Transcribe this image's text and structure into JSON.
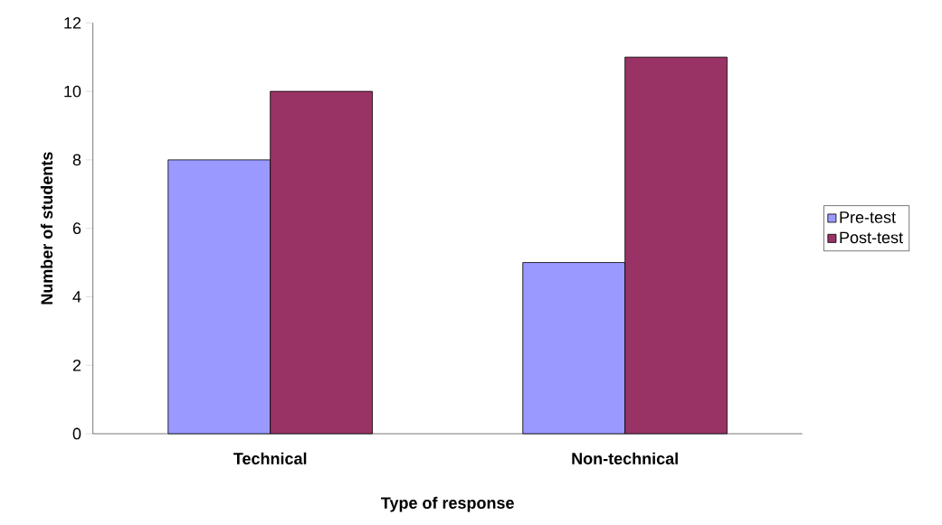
{
  "chart_data": {
    "type": "bar",
    "xlabel": "Type of response",
    "ylabel": "Number of students",
    "categories": [
      "Technical",
      "Non-technical"
    ],
    "series": [
      {
        "name": "Pre-test",
        "color": "#9999ff",
        "values": [
          8,
          5
        ]
      },
      {
        "name": "Post-test",
        "color": "#993366",
        "values": [
          10,
          11
        ]
      }
    ],
    "ylim": [
      0,
      12
    ],
    "yticks": [
      0,
      2,
      4,
      6,
      8,
      10,
      12
    ],
    "legend": "right"
  }
}
